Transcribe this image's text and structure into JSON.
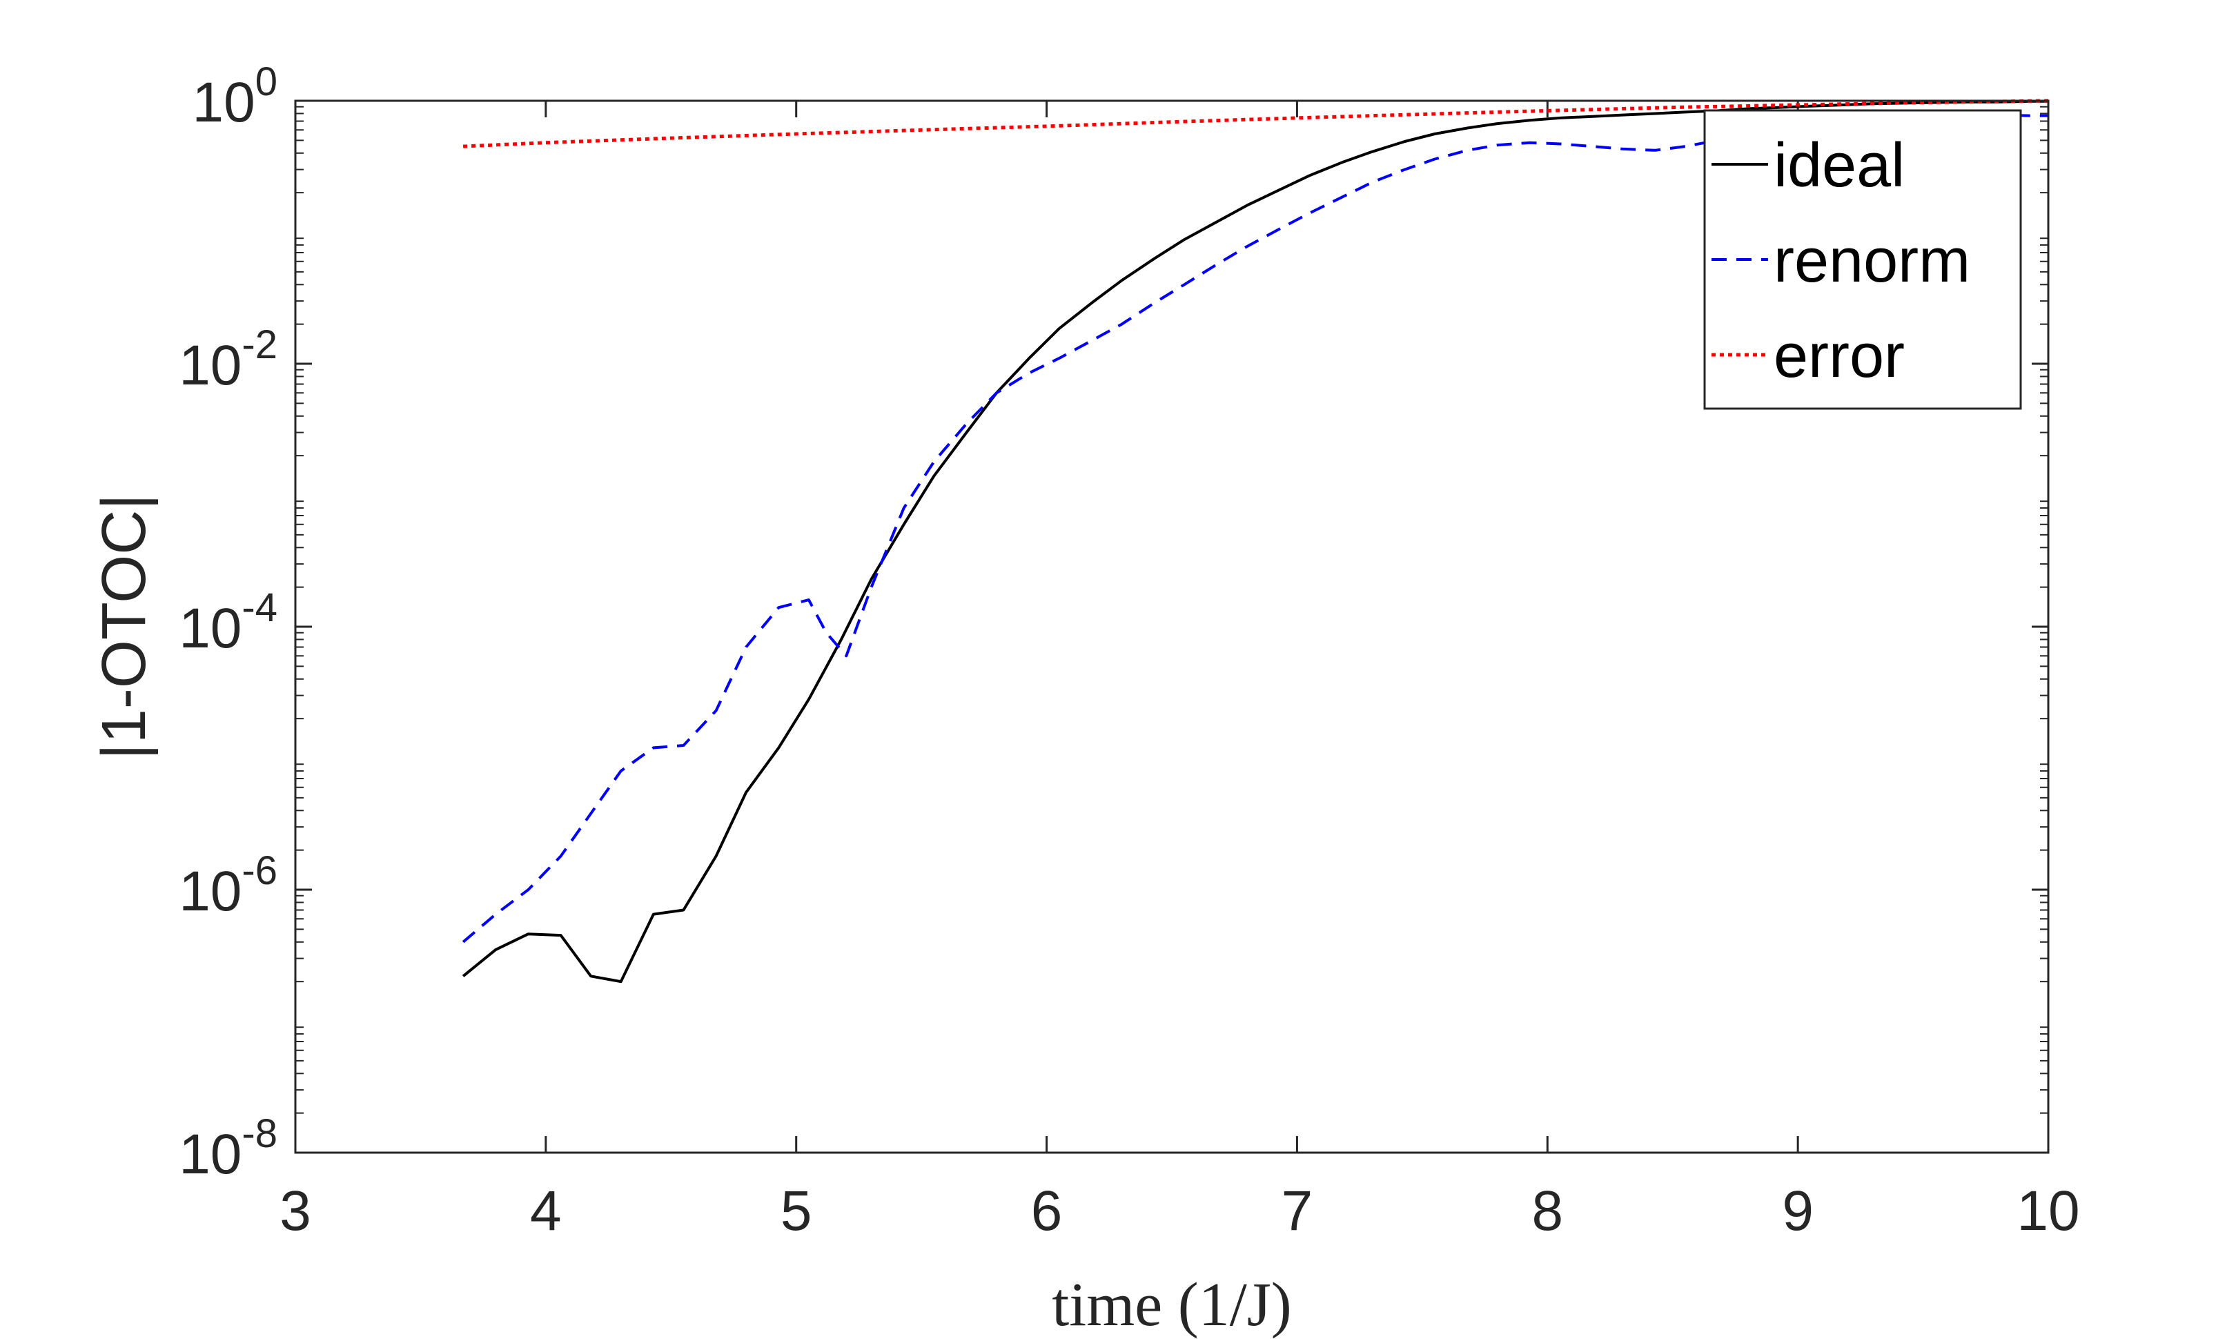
{
  "chart_data": {
    "type": "line",
    "title": "",
    "xlabel": "time (1/J)",
    "ylabel": "|1-OTOC|",
    "xlim": [
      3,
      10
    ],
    "ylim": [
      1e-08,
      1
    ],
    "yscale": "log",
    "grid": false,
    "legend_position": "top-right",
    "x_ticks": [
      {
        "value": 3,
        "label": "3"
      },
      {
        "value": 4,
        "label": "4"
      },
      {
        "value": 5,
        "label": "5"
      },
      {
        "value": 6,
        "label": "6"
      },
      {
        "value": 7,
        "label": "7"
      },
      {
        "value": 8,
        "label": "8"
      },
      {
        "value": 9,
        "label": "9"
      },
      {
        "value": 10,
        "label": "10"
      }
    ],
    "y_ticks": [
      {
        "value": 1e-08,
        "base": "10",
        "exp": "-8"
      },
      {
        "value": 1e-06,
        "base": "10",
        "exp": "-6"
      },
      {
        "value": 0.0001,
        "base": "10",
        "exp": "-4"
      },
      {
        "value": 0.01,
        "base": "10",
        "exp": "-2"
      },
      {
        "value": 1,
        "base": "10",
        "exp": "0"
      }
    ],
    "series": [
      {
        "name": "ideal",
        "color": "#000000",
        "dash": "solid",
        "x": [
          3.67,
          3.8,
          3.93,
          4.06,
          4.18,
          4.3,
          4.43,
          4.55,
          4.68,
          4.8,
          4.93,
          5.05,
          5.18,
          5.3,
          5.43,
          5.55,
          5.68,
          5.8,
          5.93,
          6.05,
          6.18,
          6.3,
          6.43,
          6.55,
          6.68,
          6.8,
          6.93,
          7.05,
          7.18,
          7.3,
          7.43,
          7.55,
          7.68,
          7.8,
          7.93,
          8.05,
          8.18,
          8.3,
          8.43,
          8.55,
          8.68,
          8.8,
          8.93,
          9.05,
          9.18,
          9.3,
          9.43,
          9.55,
          9.68,
          9.8,
          9.93,
          10.0
        ],
        "y": [
          2.2e-07,
          3.5e-07,
          4.6e-07,
          4.5e-07,
          2.2e-07,
          2e-07,
          6.5e-07,
          7e-07,
          1.8e-06,
          5.5e-06,
          1.2e-05,
          2.8e-05,
          8e-05,
          0.00023,
          0.0006,
          0.0014,
          0.003,
          0.006,
          0.011,
          0.0185,
          0.029,
          0.043,
          0.063,
          0.088,
          0.12,
          0.16,
          0.21,
          0.27,
          0.34,
          0.41,
          0.49,
          0.56,
          0.62,
          0.67,
          0.71,
          0.74,
          0.76,
          0.78,
          0.8,
          0.82,
          0.84,
          0.87,
          0.89,
          0.91,
          0.93,
          0.95,
          0.96,
          0.97,
          0.98,
          0.98,
          0.99,
          0.99
        ]
      },
      {
        "name": "renorm",
        "color": "#0000ff",
        "dash": "dashed",
        "x": [
          3.67,
          3.8,
          3.93,
          4.06,
          4.18,
          4.3,
          4.43,
          4.55,
          4.68,
          4.8,
          4.93,
          5.05,
          5.12,
          5.2,
          5.3,
          5.43,
          5.55,
          5.68,
          5.8,
          5.93,
          6.05,
          6.18,
          6.3,
          6.43,
          6.55,
          6.68,
          6.8,
          6.93,
          7.05,
          7.18,
          7.3,
          7.43,
          7.55,
          7.68,
          7.8,
          7.93,
          8.05,
          8.18,
          8.3,
          8.43,
          8.55,
          8.68,
          8.8,
          8.93,
          9.05,
          9.18,
          9.3,
          9.43,
          9.55,
          9.68,
          9.8,
          9.93,
          10.0
        ],
        "y": [
          4e-07,
          6.5e-07,
          1e-06,
          1.8e-06,
          3.8e-06,
          8e-06,
          1.2e-05,
          1.25e-05,
          2.3e-05,
          7e-05,
          0.00014,
          0.00016,
          9e-05,
          6e-05,
          0.0002,
          0.0008,
          0.0018,
          0.0035,
          0.006,
          0.0085,
          0.011,
          0.015,
          0.02,
          0.029,
          0.04,
          0.057,
          0.078,
          0.106,
          0.14,
          0.185,
          0.24,
          0.3,
          0.36,
          0.42,
          0.46,
          0.48,
          0.47,
          0.45,
          0.43,
          0.42,
          0.45,
          0.5,
          0.56,
          0.63,
          0.69,
          0.74,
          0.77,
          0.79,
          0.8,
          0.79,
          0.78,
          0.77,
          0.77
        ]
      },
      {
        "name": "error",
        "color": "#ff0000",
        "dash": "dotted",
        "x": [
          3.67,
          4.0,
          4.5,
          5.0,
          5.5,
          6.0,
          6.5,
          7.0,
          7.5,
          8.0,
          8.5,
          9.0,
          9.5,
          10.0
        ],
        "y": [
          0.45,
          0.48,
          0.52,
          0.56,
          0.6,
          0.64,
          0.69,
          0.74,
          0.79,
          0.84,
          0.89,
          0.93,
          0.97,
          1.0
        ]
      }
    ]
  }
}
